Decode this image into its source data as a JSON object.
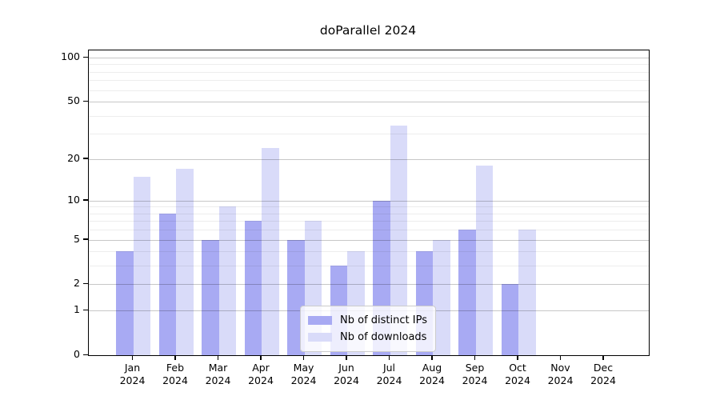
{
  "title": "doParallel 2024",
  "chart_data": {
    "type": "bar",
    "title": "doParallel 2024",
    "categories": [
      "Jan 2024",
      "Feb 2024",
      "Mar 2024",
      "Apr 2024",
      "May 2024",
      "Jun 2024",
      "Jul 2024",
      "Aug 2024",
      "Sep 2024",
      "Oct 2024",
      "Nov 2024",
      "Dec 2024"
    ],
    "series": [
      {
        "name": "Nb of distinct IPs",
        "color": "#a8aaf3",
        "values": [
          4,
          8,
          5,
          7,
          5,
          3,
          10,
          4,
          6,
          2,
          0,
          0
        ]
      },
      {
        "name": "Nb of downloads",
        "color": "#d9dbf9",
        "values": [
          15,
          17,
          9,
          24,
          7,
          4,
          34,
          5,
          18,
          6,
          0,
          0
        ]
      }
    ],
    "xlabel": "",
    "ylabel": "",
    "yscale": "log10(value+1)",
    "ylim": [
      0,
      112
    ],
    "yticks": [
      0,
      1,
      2,
      5,
      10,
      20,
      50,
      100
    ],
    "minor_yticks": [
      3,
      4,
      6,
      7,
      8,
      9,
      30,
      40,
      60,
      70,
      80,
      90
    ],
    "grid": true,
    "legend_position": "lower center"
  },
  "colors": {
    "bar_distinct_ips": "#a8aaf3",
    "bar_downloads": "#d9dbf9",
    "major_grid": "rgba(0,0,0,0.22)",
    "minor_grid": "rgba(0,0,0,0.07)",
    "axis": "#000000",
    "background": "#ffffff"
  }
}
